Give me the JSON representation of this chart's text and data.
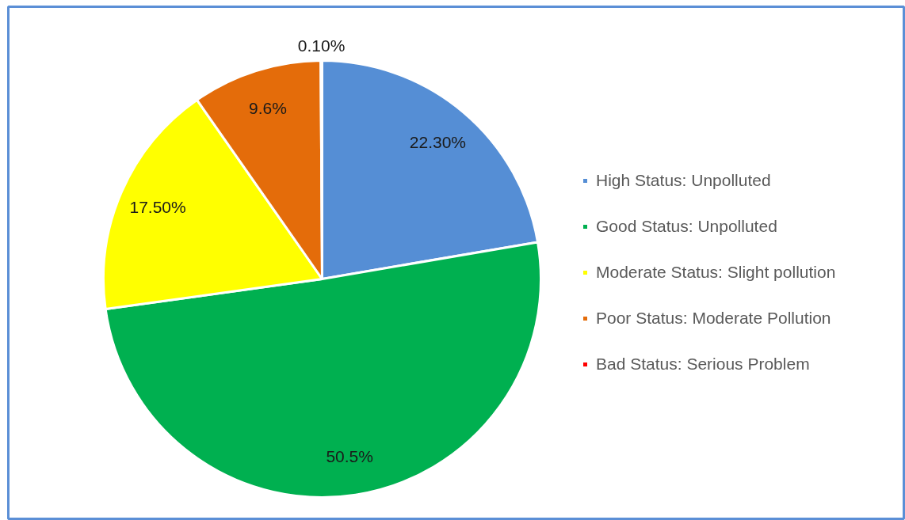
{
  "chart_data": {
    "type": "pie",
    "categories": [
      "High Status: Unpolluted",
      "Good Status: Unpolluted",
      "Moderate Status: Slight pollution",
      "Poor Status: Moderate Pollution",
      "Bad Status: Serious Problem"
    ],
    "values": [
      22.3,
      50.5,
      17.5,
      9.6,
      0.1
    ],
    "colors": [
      "#558ed5",
      "#00b050",
      "#ffff00",
      "#e46c0a",
      "#ff0000"
    ],
    "value_labels": [
      "22.30%",
      "50.5%",
      "17.50%",
      "9.6%",
      "0.10%"
    ],
    "legend": "right"
  }
}
